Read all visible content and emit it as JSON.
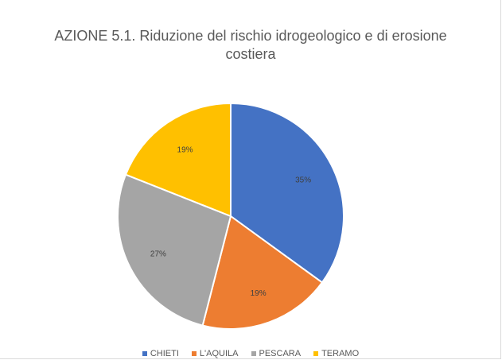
{
  "chart_data": {
    "type": "pie",
    "title": "AZIONE 5.1. Riduzione del rischio idrogeologico e di erosione costiera",
    "categories": [
      "CHIETI",
      "L'AQUILA",
      "PESCARA",
      "TERAMO"
    ],
    "values": [
      35,
      19,
      27,
      19
    ],
    "data_labels": [
      "35%",
      "19%",
      "27%",
      "19%"
    ],
    "colors": [
      "#4472c4",
      "#ed7d31",
      "#a5a5a5",
      "#ffc000"
    ],
    "legend_position": "bottom"
  }
}
